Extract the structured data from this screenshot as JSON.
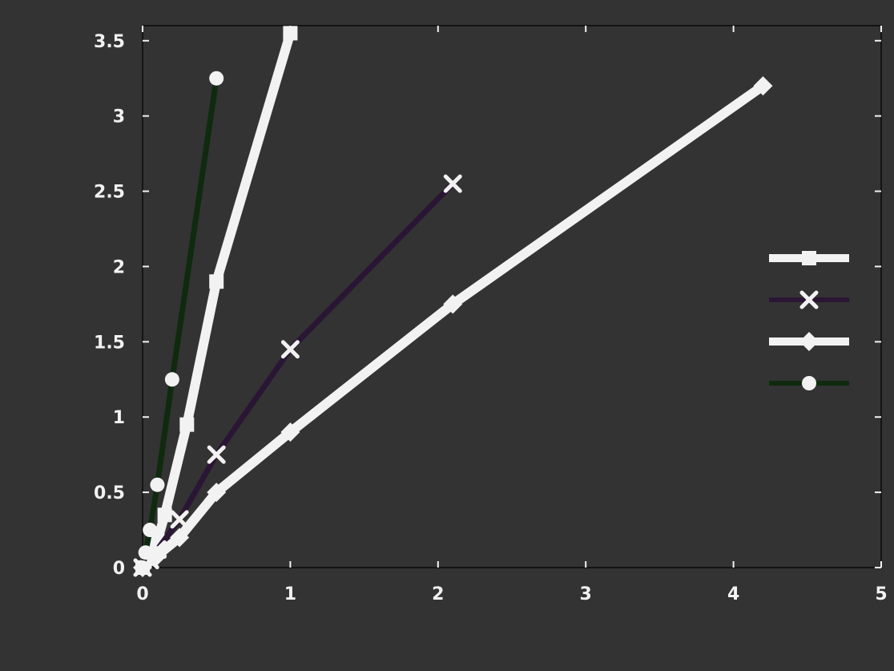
{
  "chart_data": {
    "type": "line",
    "title": "",
    "xlabel": "",
    "ylabel": "",
    "xlim": [
      0,
      5
    ],
    "ylim": [
      0,
      3.6
    ],
    "xticks": [
      0,
      1,
      2,
      3,
      4,
      5
    ],
    "yticks": [
      0,
      0.5,
      1.0,
      1.5,
      2.0,
      2.5,
      3.0,
      3.5
    ],
    "grid": false,
    "legend": "right",
    "series": [
      {
        "name": "",
        "color": "#f2f2f2",
        "marker": "square",
        "points": [
          [
            0.0,
            0.0
          ],
          [
            0.05,
            0.08
          ],
          [
            0.1,
            0.18
          ],
          [
            0.15,
            0.35
          ],
          [
            0.3,
            0.95
          ],
          [
            0.5,
            1.9
          ],
          [
            1.0,
            3.55
          ]
        ]
      },
      {
        "name": "",
        "color": "#2a1634",
        "marker": "x",
        "points": [
          [
            0.0,
            0.0
          ],
          [
            0.05,
            0.05
          ],
          [
            0.1,
            0.12
          ],
          [
            0.25,
            0.32
          ],
          [
            0.5,
            0.75
          ],
          [
            1.0,
            1.45
          ],
          [
            2.1,
            2.55
          ]
        ]
      },
      {
        "name": "",
        "color": "#f2f2f2",
        "marker": "diamond",
        "points": [
          [
            0.0,
            0.0
          ],
          [
            0.1,
            0.08
          ],
          [
            0.25,
            0.2
          ],
          [
            0.5,
            0.5
          ],
          [
            1.0,
            0.9
          ],
          [
            2.1,
            1.75
          ],
          [
            4.2,
            3.2
          ]
        ]
      },
      {
        "name": "",
        "color": "#0f2a0f",
        "marker": "circle",
        "points": [
          [
            0.0,
            0.0
          ],
          [
            0.02,
            0.1
          ],
          [
            0.05,
            0.25
          ],
          [
            0.1,
            0.55
          ],
          [
            0.2,
            1.25
          ],
          [
            0.5,
            3.25
          ]
        ]
      }
    ]
  }
}
